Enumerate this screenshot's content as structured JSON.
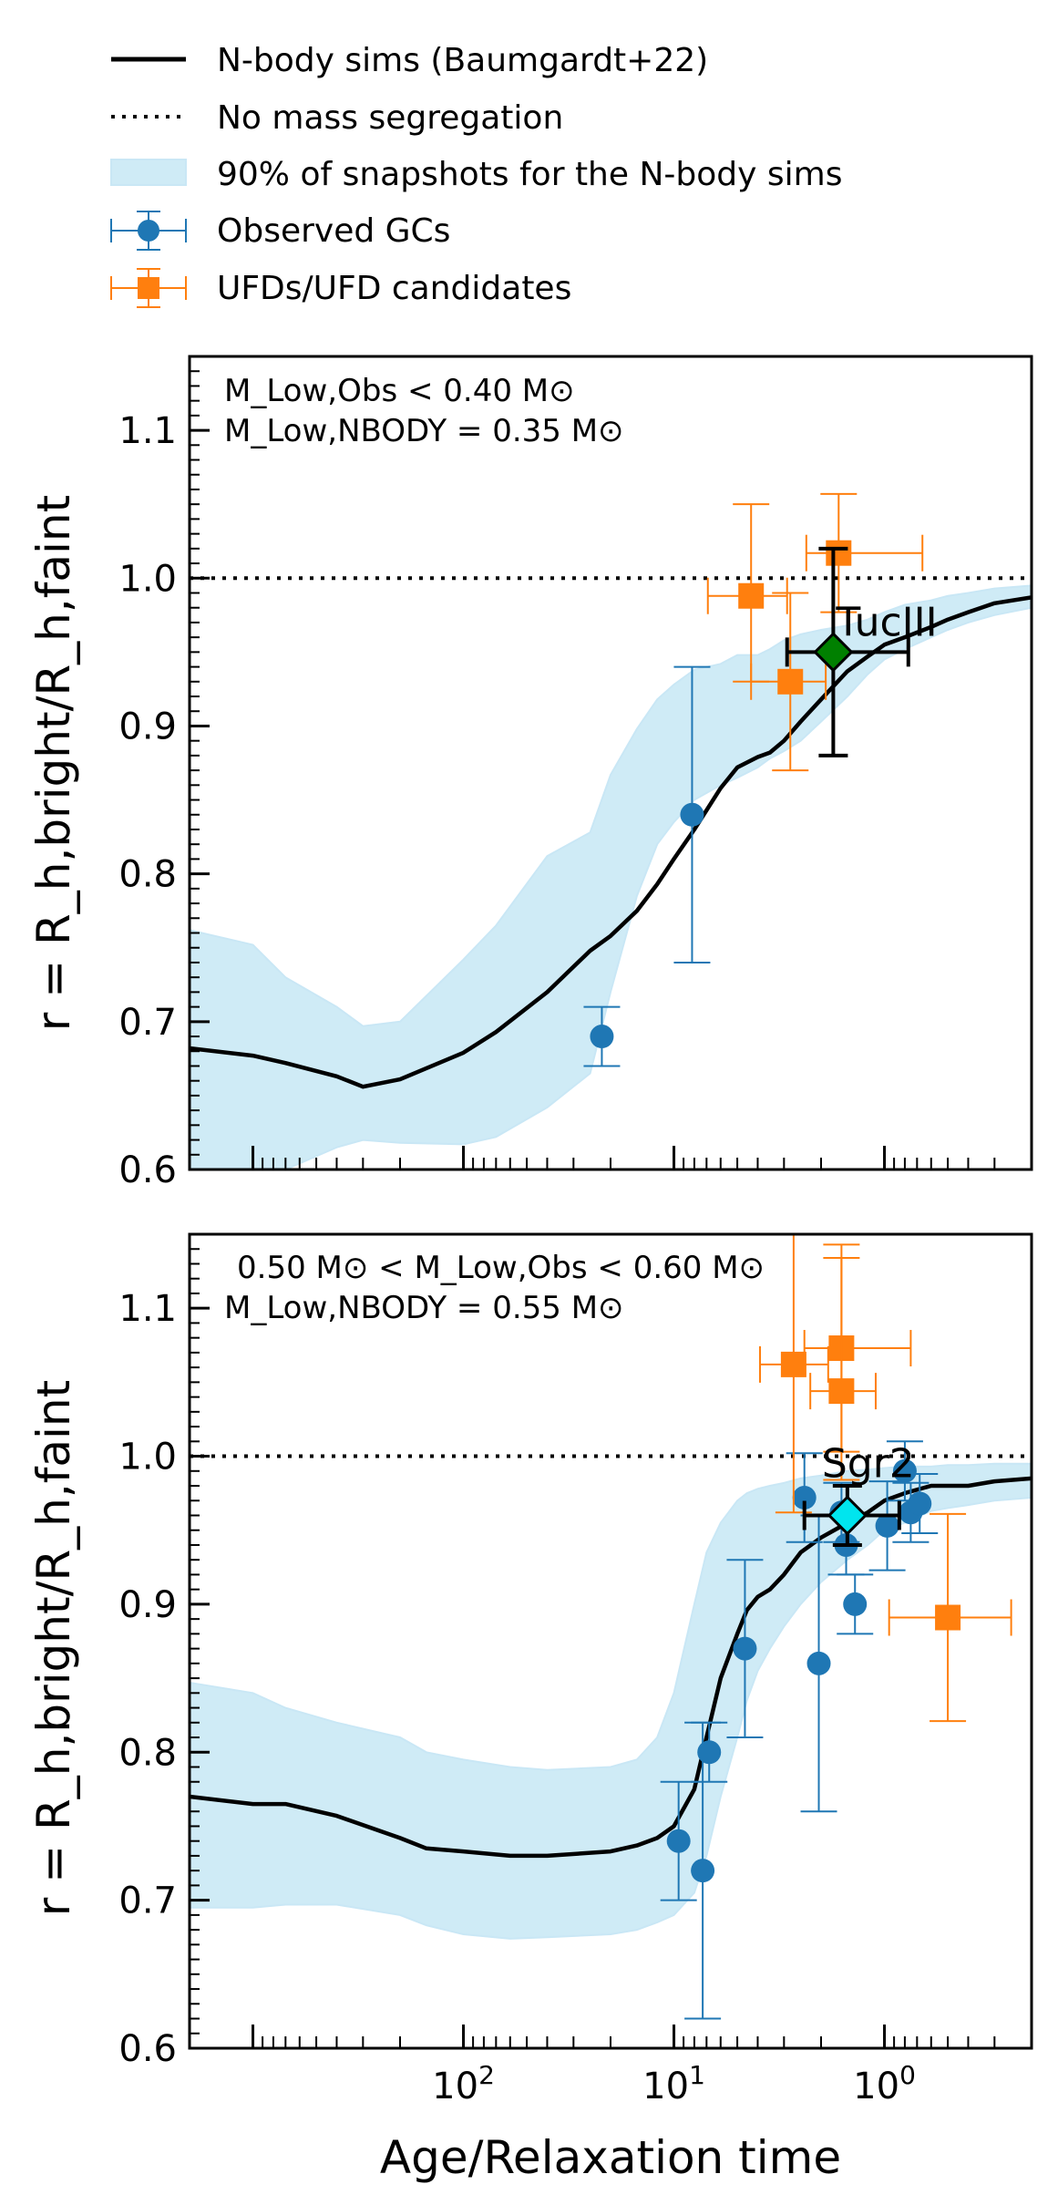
{
  "legend": {
    "entries": [
      {
        "label": "N-body sims (Baumgardt+22)",
        "kind": "line-solid"
      },
      {
        "label": "No mass segregation",
        "kind": "line-dotted"
      },
      {
        "label": "90% of snapshots for the N-body sims",
        "kind": "band"
      },
      {
        "label": "Observed GCs",
        "kind": "circle"
      },
      {
        "label": "UFDs/UFD candidates",
        "kind": "square"
      }
    ]
  },
  "colors": {
    "band": "#a9dbf0",
    "band_edge": "#9ed4ee",
    "gc": "#1f77b4",
    "ufd": "#ff7f0e",
    "tucIII": "#008000",
    "sgr2": "#00e5ee",
    "line": "#000000"
  },
  "chart_data": [
    {
      "type": "scatter",
      "panel": "top",
      "annotation_lines": [
        "M_Low,Obs < 0.40 M⊙",
        "M_Low,NBODY = 0.35 M⊙"
      ],
      "xlabel": "",
      "ylabel": "r = R_h,bright/R_h,faint",
      "x_axis": "log, inverted (Age/Relaxation time)",
      "xlim": [
        2000,
        0.2
      ],
      "ylim": [
        0.6,
        1.15
      ],
      "x_ticks": [
        1000,
        10,
        0.1
      ],
      "y_ticks": [
        0.6,
        0.7,
        0.8,
        0.9,
        1.0,
        1.1
      ],
      "y_tick_labels": [
        "0.6",
        "0.7",
        "0.8",
        "0.9",
        "1.0",
        "1.1"
      ],
      "reference_line": {
        "name": "No mass segregation",
        "y": 1.0
      },
      "nbody_median": {
        "x": [
          2000,
          1000,
          700,
          400,
          300,
          200,
          100,
          70,
          40,
          25,
          20,
          15,
          12,
          10,
          8,
          6,
          5,
          4,
          3.5,
          3,
          2.5,
          2,
          1.5,
          1.2,
          1,
          0.8,
          0.6,
          0.5,
          0.4,
          0.3,
          0.2
        ],
        "y": [
          0.682,
          0.677,
          0.672,
          0.663,
          0.656,
          0.661,
          0.679,
          0.693,
          0.72,
          0.748,
          0.758,
          0.775,
          0.793,
          0.81,
          0.83,
          0.858,
          0.872,
          0.879,
          0.882,
          0.89,
          0.903,
          0.918,
          0.937,
          0.947,
          0.955,
          0.96,
          0.967,
          0.972,
          0.977,
          0.983,
          0.987
        ]
      },
      "nbody_band": {
        "x": [
          2000,
          1000,
          700,
          400,
          300,
          200,
          100,
          70,
          40,
          25,
          20,
          15,
          12,
          10,
          8,
          6,
          5,
          4,
          3.5,
          3,
          2.5,
          2,
          1.5,
          1.2,
          1,
          0.8,
          0.6,
          0.5,
          0.4,
          0.3,
          0.2
        ],
        "upper": [
          0.762,
          0.752,
          0.73,
          0.71,
          0.697,
          0.7,
          0.742,
          0.765,
          0.812,
          0.828,
          0.867,
          0.898,
          0.918,
          0.928,
          0.938,
          0.942,
          0.948,
          0.948,
          0.952,
          0.958,
          0.962,
          0.965,
          0.968,
          0.972,
          0.977,
          0.982,
          0.985,
          0.988,
          0.99,
          0.993,
          0.995
        ],
        "lower": [
          0.595,
          0.595,
          0.6,
          0.615,
          0.62,
          0.618,
          0.617,
          0.622,
          0.642,
          0.665,
          0.72,
          0.785,
          0.82,
          0.835,
          0.85,
          0.86,
          0.865,
          0.872,
          0.878,
          0.883,
          0.89,
          0.903,
          0.92,
          0.935,
          0.945,
          0.952,
          0.96,
          0.965,
          0.97,
          0.975,
          0.98
        ]
      },
      "observed_gcs": [
        {
          "x": 22,
          "y": 0.69,
          "yerr_lo": 0.02,
          "yerr_hi": 0.02
        },
        {
          "x": 8.2,
          "y": 0.84,
          "yerr_lo": 0.1,
          "yerr_hi": 0.1
        }
      ],
      "ufds": [
        {
          "x": 4.3,
          "y": 0.988,
          "xlo": 6.9,
          "xhi": 2.9,
          "ylo": 0.93,
          "yhi": 1.05
        },
        {
          "x": 2.8,
          "y": 0.93,
          "xlo": 4.3,
          "xhi": 1.9,
          "ylo": 0.87,
          "yhi": 0.99
        },
        {
          "x": 1.65,
          "y": 1.017,
          "xlo": 2.35,
          "xhi": 0.66,
          "ylo": 0.977,
          "yhi": 1.057
        }
      ],
      "named_objects": [
        {
          "name": "TucIII",
          "x": 1.75,
          "y": 0.95,
          "xlo": 2.9,
          "xhi": 0.77,
          "ylo": 0.88,
          "yhi": 1.02
        }
      ]
    },
    {
      "type": "scatter",
      "panel": "bottom",
      "annotation_lines": [
        "0.50 M⊙ < M_Low,Obs < 0.60 M⊙",
        "M_Low,NBODY = 0.55 M⊙"
      ],
      "xlabel": "Age/Relaxation time",
      "ylabel": "r = R_h,bright/R_h,faint",
      "x_axis": "log, inverted (Age/Relaxation time)",
      "xlim": [
        2000,
        0.2
      ],
      "ylim": [
        0.6,
        1.15
      ],
      "x_ticks": [
        100,
        10,
        1
      ],
      "x_tick_labels": [
        "10^2",
        "10^1",
        "10^0"
      ],
      "y_ticks": [
        0.6,
        0.7,
        0.8,
        0.9,
        1.0,
        1.1
      ],
      "y_tick_labels": [
        "0.6",
        "0.7",
        "0.8",
        "0.9",
        "1.0",
        "1.1"
      ],
      "reference_line": {
        "name": "No mass segregation",
        "y": 1.0
      },
      "nbody_median": {
        "x": [
          2000,
          1000,
          700,
          400,
          200,
          150,
          100,
          60,
          40,
          20,
          15,
          12,
          10,
          8,
          7,
          6,
          5,
          4.5,
          4,
          3.5,
          3,
          2.5,
          2,
          1.5,
          1.2,
          1,
          0.8,
          0.6,
          0.5,
          0.4,
          0.3,
          0.2
        ],
        "y": [
          0.77,
          0.765,
          0.765,
          0.757,
          0.742,
          0.735,
          0.733,
          0.73,
          0.73,
          0.733,
          0.737,
          0.742,
          0.75,
          0.775,
          0.81,
          0.85,
          0.88,
          0.896,
          0.905,
          0.91,
          0.92,
          0.935,
          0.945,
          0.955,
          0.962,
          0.97,
          0.975,
          0.98,
          0.98,
          0.98,
          0.983,
          0.985
        ]
      },
      "nbody_band": {
        "x": [
          2000,
          1000,
          700,
          400,
          200,
          150,
          100,
          60,
          40,
          20,
          15,
          12,
          10,
          8,
          7,
          6,
          5,
          4.5,
          4,
          3.5,
          3,
          2.5,
          2,
          1.5,
          1.2,
          1,
          0.8,
          0.6,
          0.5,
          0.4,
          0.3,
          0.2
        ],
        "upper": [
          0.847,
          0.84,
          0.83,
          0.82,
          0.81,
          0.8,
          0.795,
          0.79,
          0.788,
          0.79,
          0.795,
          0.81,
          0.84,
          0.9,
          0.935,
          0.955,
          0.97,
          0.975,
          0.978,
          0.98,
          0.982,
          0.985,
          0.987,
          0.99,
          0.991,
          0.992,
          0.993,
          0.993,
          0.994,
          0.994,
          0.995,
          0.995
        ],
        "lower": [
          0.695,
          0.695,
          0.697,
          0.697,
          0.69,
          0.683,
          0.677,
          0.674,
          0.675,
          0.677,
          0.68,
          0.685,
          0.69,
          0.705,
          0.73,
          0.77,
          0.81,
          0.835,
          0.855,
          0.87,
          0.885,
          0.9,
          0.915,
          0.93,
          0.94,
          0.95,
          0.955,
          0.963,
          0.965,
          0.967,
          0.97,
          0.972
        ]
      },
      "observed_gcs": [
        {
          "x": 9.5,
          "y": 0.74,
          "yerr_lo": 0.04,
          "yerr_hi": 0.04
        },
        {
          "x": 7.3,
          "y": 0.72,
          "yerr_lo": 0.1,
          "yerr_hi": 0.1
        },
        {
          "x": 6.8,
          "y": 0.8,
          "yerr_lo": 0.02,
          "yerr_hi": 0.02
        },
        {
          "x": 4.6,
          "y": 0.87,
          "yerr_lo": 0.06,
          "yerr_hi": 0.06
        },
        {
          "x": 2.4,
          "y": 0.972,
          "yerr_lo": 0.03,
          "yerr_hi": 0.03
        },
        {
          "x": 2.05,
          "y": 0.86,
          "yerr_lo": 0.1,
          "yerr_hi": 0.1
        },
        {
          "x": 1.6,
          "y": 0.962,
          "yerr_lo": 0.02,
          "yerr_hi": 0.02
        },
        {
          "x": 1.52,
          "y": 0.94,
          "yerr_lo": 0.02,
          "yerr_hi": 0.02
        },
        {
          "x": 1.38,
          "y": 0.9,
          "yerr_lo": 0.02,
          "yerr_hi": 0.02
        },
        {
          "x": 0.97,
          "y": 0.953,
          "yerr_lo": 0.03,
          "yerr_hi": 0.03
        },
        {
          "x": 0.8,
          "y": 0.99,
          "yerr_lo": 0.02,
          "yerr_hi": 0.02
        },
        {
          "x": 0.75,
          "y": 0.962,
          "yerr_lo": 0.02,
          "yerr_hi": 0.02
        },
        {
          "x": 0.68,
          "y": 0.968,
          "yerr_lo": 0.02,
          "yerr_hi": 0.02
        }
      ],
      "ufds": [
        {
          "x": 2.7,
          "y": 1.062,
          "xlo": 3.9,
          "xhi": 1.85,
          "ylo": 0.962,
          "yhi": 1.162
        },
        {
          "x": 1.6,
          "y": 1.073,
          "xlo": 2.4,
          "xhi": 0.75,
          "ylo": 1.003,
          "yhi": 1.143
        },
        {
          "x": 1.6,
          "y": 1.044,
          "xlo": 2.25,
          "xhi": 1.1,
          "ylo": 0.984,
          "yhi": 1.134
        },
        {
          "x": 0.5,
          "y": 0.891,
          "xlo": 0.95,
          "xhi": 0.25,
          "ylo": 0.821,
          "yhi": 0.961
        }
      ],
      "named_objects": [
        {
          "name": "Sgr2",
          "x": 1.5,
          "y": 0.96,
          "xlo": 2.4,
          "xhi": 0.85,
          "ylo": 0.94,
          "yhi": 0.98
        }
      ]
    }
  ]
}
